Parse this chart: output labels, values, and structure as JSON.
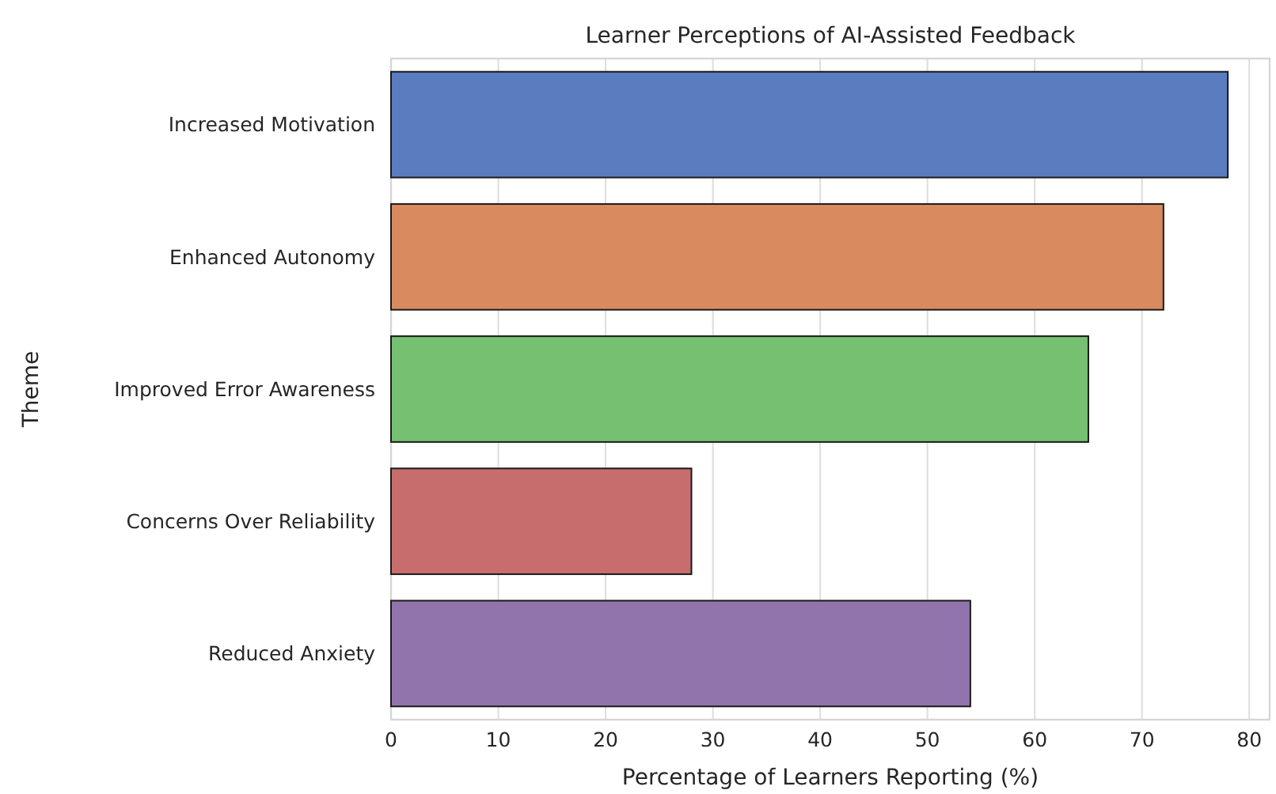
{
  "chart_data": {
    "type": "bar",
    "orientation": "horizontal",
    "title": "Learner Perceptions of AI-Assisted Feedback",
    "xlabel": "Percentage of Learners Reporting (%)",
    "ylabel": "Theme",
    "categories": [
      "Increased Motivation",
      "Enhanced Autonomy",
      "Improved Error Awareness",
      "Concerns Over Reliability",
      "Reduced Anxiety"
    ],
    "values": [
      78,
      72,
      65,
      28,
      54
    ],
    "colors": [
      "#5a7dbf",
      "#d98a5f",
      "#76c072",
      "#c76d6d",
      "#9274ad"
    ],
    "xlim": [
      0,
      81.9
    ],
    "xticks": [
      0,
      10,
      20,
      30,
      40,
      50,
      60,
      70,
      80
    ],
    "grid": "x"
  }
}
